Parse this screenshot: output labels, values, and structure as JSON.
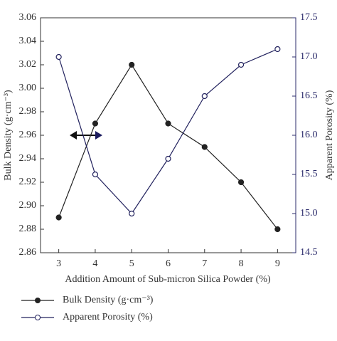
{
  "chart_data": {
    "type": "line",
    "x_label": "Addition Amount of Sub-micron Silica Powder (%)",
    "y_label": "Bulk Density (g·cm⁻³)",
    "y2_label": "Apparent Porosity (%)",
    "x": [
      3,
      4,
      5,
      6,
      7,
      8,
      9
    ],
    "xlim": [
      2.5,
      9.5
    ],
    "xticks": [
      3,
      4,
      5,
      6,
      7,
      8,
      9
    ],
    "ylim": [
      2.86,
      3.06
    ],
    "yticks": [
      2.86,
      2.88,
      {
        "value": 2.9,
        "label": "2.90"
      },
      2.92,
      2.94,
      2.96,
      2.98,
      {
        "value": 3,
        "label": "3.00"
      },
      3.02,
      3.04,
      3.06
    ],
    "y2lim": [
      14.5,
      17.5
    ],
    "y2ticks": [
      14.5,
      {
        "value": 15,
        "label": "15.0"
      },
      15.5,
      {
        "value": 16,
        "label": "16.0"
      },
      16.5,
      {
        "value": 17,
        "label": "17.0"
      },
      17.5
    ],
    "y2_color": "#2b2b6b",
    "series": [
      {
        "name": "Bulk Density (g·cm⁻³)",
        "color": "#222222",
        "marker": "filled",
        "values": [
          2.89,
          2.97,
          3.02,
          2.97,
          2.95,
          2.92,
          2.88
        ]
      },
      {
        "name": "Apparent Porosity (%)",
        "color": "#22225e",
        "marker": "open",
        "axis": "y2",
        "values": [
          17.0,
          15.5,
          15.0,
          15.7,
          16.5,
          16.9,
          17.1
        ]
      }
    ]
  }
}
